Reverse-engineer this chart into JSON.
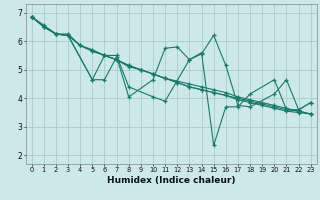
{
  "title": "",
  "xlabel": "Humidex (Indice chaleur)",
  "ylabel": "",
  "background_color": "#cce8e8",
  "grid_color": "#aacccc",
  "line_color": "#1a7a6a",
  "xlim": [
    -0.5,
    23.5
  ],
  "ylim": [
    1.7,
    7.3
  ],
  "yticks": [
    2,
    3,
    4,
    5,
    6,
    7
  ],
  "xticks": [
    0,
    1,
    2,
    3,
    4,
    5,
    6,
    7,
    8,
    9,
    10,
    11,
    12,
    13,
    14,
    15,
    16,
    17,
    18,
    19,
    20,
    21,
    22,
    23
  ],
  "series": [
    {
      "x": [
        0,
        1,
        2,
        3,
        4,
        5,
        6,
        7,
        8,
        9,
        10,
        11,
        12,
        13,
        14,
        15,
        16,
        17,
        18,
        19,
        20,
        21,
        22,
        23
      ],
      "y": [
        6.85,
        6.5,
        6.25,
        6.2,
        5.85,
        5.65,
        5.5,
        5.35,
        5.15,
        5.0,
        4.85,
        4.7,
        4.55,
        4.4,
        4.3,
        4.2,
        4.1,
        4.0,
        3.9,
        3.8,
        3.7,
        3.6,
        3.55,
        3.45
      ]
    },
    {
      "x": [
        0,
        1,
        2,
        3,
        4,
        5,
        6,
        7,
        8,
        9,
        10,
        11,
        12,
        13,
        14,
        15,
        16,
        17,
        18,
        19,
        20,
        21,
        22,
        23
      ],
      "y": [
        6.85,
        6.5,
        6.25,
        6.2,
        5.85,
        5.65,
        5.5,
        5.35,
        5.15,
        5.0,
        4.85,
        4.7,
        4.55,
        4.4,
        4.3,
        4.2,
        4.1,
        3.95,
        3.85,
        3.75,
        3.65,
        3.55,
        3.5,
        3.45
      ]
    },
    {
      "x": [
        0,
        1,
        2,
        3,
        5,
        6,
        7,
        8,
        10,
        11,
        13,
        14,
        15,
        16,
        17,
        18,
        20,
        21,
        22,
        23
      ],
      "y": [
        6.85,
        6.5,
        6.25,
        6.2,
        4.65,
        5.5,
        5.5,
        4.4,
        4.05,
        3.9,
        5.35,
        5.55,
        6.2,
        5.15,
        3.75,
        3.7,
        4.15,
        4.65,
        3.6,
        3.85
      ]
    },
    {
      "x": [
        0,
        1,
        2,
        3,
        4,
        5,
        6,
        7,
        8,
        9,
        10,
        11,
        12,
        13,
        14,
        15,
        16,
        17,
        18,
        19,
        20,
        21,
        22,
        23
      ],
      "y": [
        6.85,
        6.55,
        6.25,
        6.25,
        5.85,
        5.7,
        5.5,
        5.35,
        5.1,
        5.0,
        4.85,
        4.7,
        4.6,
        4.5,
        4.4,
        4.3,
        4.2,
        4.05,
        3.95,
        3.85,
        3.75,
        3.65,
        3.55,
        3.45
      ]
    },
    {
      "x": [
        0,
        2,
        3,
        5,
        6,
        7,
        8,
        10,
        11,
        12,
        13,
        14,
        15,
        16,
        17,
        18,
        20,
        21,
        22,
        23
      ],
      "y": [
        6.85,
        6.25,
        6.2,
        4.65,
        4.65,
        5.45,
        4.05,
        4.65,
        5.75,
        5.8,
        5.35,
        5.6,
        2.35,
        3.7,
        3.7,
        4.15,
        4.65,
        3.6,
        3.6,
        3.85
      ]
    }
  ]
}
